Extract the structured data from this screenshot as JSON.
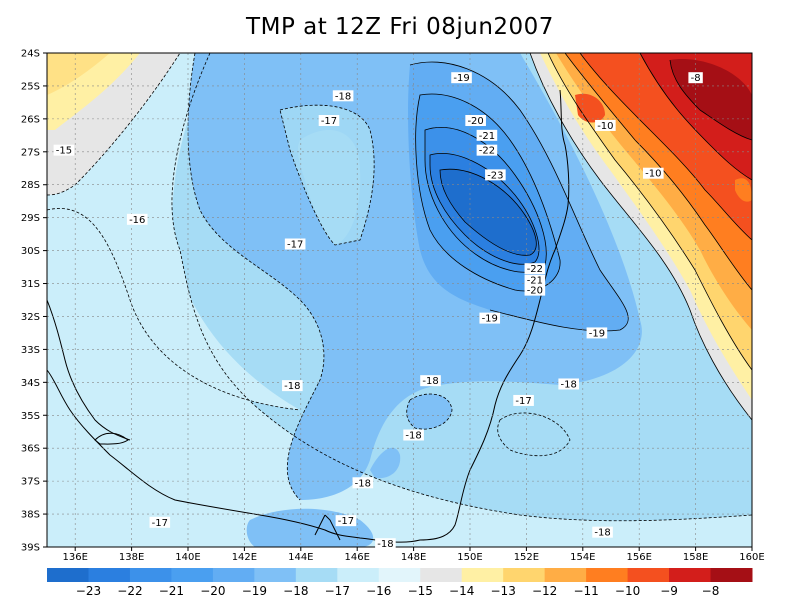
{
  "title": "TMP at 12Z Fri 08jun2007",
  "map": {
    "lat_labels": [
      "24S",
      "25S",
      "26S",
      "27S",
      "28S",
      "29S",
      "30S",
      "31S",
      "32S",
      "33S",
      "34S",
      "35S",
      "36S",
      "37S",
      "38S",
      "39S"
    ],
    "lon_labels": [
      "136E",
      "138E",
      "140E",
      "142E",
      "144E",
      "146E",
      "148E",
      "150E",
      "152E",
      "154E",
      "156E",
      "158E",
      "160E"
    ],
    "contour_labels": [
      {
        "text": "-19",
        "lon": 149.7,
        "lat": -24.75
      },
      {
        "text": "-18",
        "lon": 145.5,
        "lat": -25.3
      },
      {
        "text": "-17",
        "lon": 145.0,
        "lat": -26.05
      },
      {
        "text": "-15",
        "lon": 135.6,
        "lat": -26.95
      },
      {
        "text": "-20",
        "lon": 150.2,
        "lat": -26.05
      },
      {
        "text": "-21",
        "lon": 150.6,
        "lat": -26.5
      },
      {
        "text": "-22",
        "lon": 150.6,
        "lat": -26.95
      },
      {
        "text": "-23",
        "lon": 150.9,
        "lat": -27.7
      },
      {
        "text": "-16",
        "lon": 138.2,
        "lat": -29.05
      },
      {
        "text": "-17",
        "lon": 143.8,
        "lat": -29.8
      },
      {
        "text": "-22",
        "lon": 152.3,
        "lat": -30.55
      },
      {
        "text": "-21",
        "lon": 152.3,
        "lat": -30.9
      },
      {
        "text": "-20",
        "lon": 152.3,
        "lat": -31.2
      },
      {
        "text": "-19",
        "lon": 150.7,
        "lat": -32.05
      },
      {
        "text": "-19",
        "lon": 154.5,
        "lat": -32.5
      },
      {
        "text": "-18",
        "lon": 143.7,
        "lat": -34.1
      },
      {
        "text": "-18",
        "lon": 148.6,
        "lat": -33.95
      },
      {
        "text": "-18",
        "lon": 153.5,
        "lat": -34.05
      },
      {
        "text": "-17",
        "lon": 151.9,
        "lat": -34.55
      },
      {
        "text": "-18",
        "lon": 148.0,
        "lat": -35.6
      },
      {
        "text": "-18",
        "lon": 146.2,
        "lat": -37.05
      },
      {
        "text": "-17",
        "lon": 145.6,
        "lat": -38.2
      },
      {
        "text": "-17",
        "lon": 139.0,
        "lat": -38.25
      },
      {
        "text": "-18",
        "lon": 147.0,
        "lat": -38.9
      },
      {
        "text": "-18",
        "lon": 154.7,
        "lat": -38.55
      },
      {
        "text": "-10",
        "lon": 154.8,
        "lat": -26.2
      },
      {
        "text": "-10",
        "lon": 156.5,
        "lat": -27.65
      },
      {
        "text": "-8",
        "lon": 158.0,
        "lat": -24.75
      }
    ]
  },
  "colorbar": {
    "labels": [
      "-23",
      "-22",
      "-21",
      "-20",
      "-19",
      "-18",
      "-17",
      "-16",
      "-15",
      "-14",
      "-13",
      "-12",
      "-11",
      "-10",
      "-9",
      "-8"
    ],
    "colors": [
      "#1e6ecd",
      "#2b7fe0",
      "#3c91ea",
      "#4a9ff0",
      "#62adf3",
      "#7fc0f6",
      "#a6dcf5",
      "#cbeefa",
      "#e2f5fb",
      "#e6e6e6",
      "#fff0a4",
      "#ffd56e",
      "#ffad45",
      "#ff7e20",
      "#f4501f",
      "#d31e1b",
      "#a50f15"
    ]
  }
}
